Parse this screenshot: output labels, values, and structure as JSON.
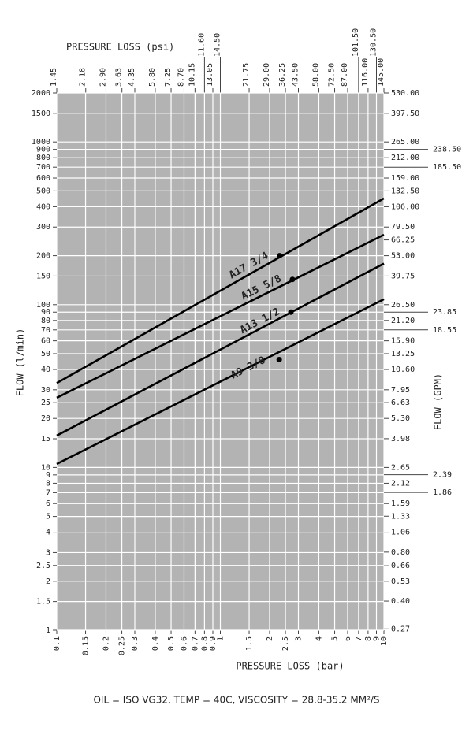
{
  "chart_data": {
    "type": "line",
    "title": "PRESSURE LOSS (psi)",
    "xlabel": "PRESSURE LOSS (bar)",
    "ylabel": "FLOW (l/min)",
    "y2label": "FLOW (GPM)",
    "footnote": "OIL = ISO VG32, TEMP = 40C, VISCOSITY = 28.8-35.2 MM²/S",
    "xscale": "log",
    "yscale": "log",
    "grid": true,
    "background": "#b3b3b3",
    "grid_color": "#ffffff",
    "xlim": [
      0.1,
      10
    ],
    "xticks": [
      0.1,
      0.15,
      0.2,
      0.25,
      0.3,
      0.4,
      0.5,
      0.6,
      0.7,
      0.8,
      0.9,
      1,
      1.5,
      2,
      2.5,
      3,
      4,
      5,
      6,
      7,
      8,
      9,
      10
    ],
    "x2lim": [
      1.45,
      145
    ],
    "x2ticks": [
      1.45,
      2.18,
      {
        "value": 2.9,
        "label": "2.90"
      },
      3.63,
      4.35,
      {
        "value": 5.8,
        "label": "5.80"
      },
      7.25,
      {
        "value": 8.7,
        "label": "8.70"
      },
      10.15,
      13.05,
      {
        "value": 21.75,
        "label": "21.75"
      },
      {
        "value": 29,
        "label": "29.00"
      },
      36.25,
      {
        "value": 43.5,
        "label": "43.50"
      },
      {
        "value": 58,
        "label": "58.00"
      },
      {
        "value": 72.5,
        "label": "72.50"
      },
      {
        "value": 87,
        "label": "87.00"
      },
      {
        "value": 116,
        "label": "116.00"
      },
      {
        "value": 145,
        "label": "145.00"
      }
    ],
    "x2ticks_raised": [
      {
        "value": 11.6,
        "label": "11.60"
      },
      {
        "value": 14.5,
        "label": "14.50"
      },
      {
        "value": 101.5,
        "label": "101.50"
      },
      {
        "value": 130.5,
        "label": "130.50"
      }
    ],
    "ylim": [
      1,
      2000
    ],
    "yticks": [
      1,
      1.5,
      2,
      2.5,
      3,
      4,
      5,
      6,
      7,
      8,
      9,
      10,
      15,
      20,
      25,
      30,
      40,
      50,
      60,
      70,
      80,
      90,
      100,
      150,
      200,
      300,
      400,
      500,
      600,
      700,
      800,
      900,
      1000,
      1500,
      2000
    ],
    "y2lim": [
      0.265,
      530
    ],
    "y2ticks": [
      0.27,
      {
        "value": 0.4,
        "label": "0.40"
      },
      0.53,
      0.66,
      {
        "value": 0.8,
        "label": "0.80"
      },
      1.06,
      1.33,
      1.59,
      2.12,
      2.65,
      3.98,
      {
        "value": 5.3,
        "label": "5.30"
      },
      6.63,
      7.95,
      {
        "value": 10.6,
        "label": "10.60"
      },
      13.25,
      {
        "value": 15.9,
        "label": "15.90"
      },
      {
        "value": 21.2,
        "label": "21.20"
      },
      {
        "value": 26.5,
        "label": "26.50"
      },
      39.75,
      {
        "value": 53,
        "label": "53.00"
      },
      66.25,
      {
        "value": 79.5,
        "label": "79.50"
      },
      {
        "value": 106,
        "label": "106.00"
      },
      {
        "value": 132.5,
        "label": "132.50"
      },
      {
        "value": 159,
        "label": "159.00"
      },
      {
        "value": 212,
        "label": "212.00"
      },
      {
        "value": 265,
        "label": "265.00"
      },
      {
        "value": 397.5,
        "label": "397.50"
      },
      {
        "value": 530,
        "label": "530.00"
      }
    ],
    "y2ticks_outer": [
      {
        "value": 238.5,
        "label": "238.50"
      },
      {
        "value": 185.5,
        "label": "185.50"
      },
      23.85,
      18.55,
      2.39,
      1.86
    ],
    "series": [
      {
        "name": "A17 3/4",
        "color": "#000000",
        "x": [
          0.1,
          10
        ],
        "values": [
          33,
          450
        ],
        "marker_x": 2.3,
        "marker_value": 200
      },
      {
        "name": "A15 5/8",
        "color": "#000000",
        "x": [
          0.1,
          10
        ],
        "values": [
          26.8,
          269
        ],
        "marker_x": 2.76,
        "marker_value": 143
      },
      {
        "name": "A13 1/2",
        "color": "#000000",
        "x": [
          0.1,
          10
        ],
        "values": [
          15.7,
          179
        ],
        "marker_x": 2.7,
        "marker_value": 90
      },
      {
        "name": "A9 3/8",
        "color": "#000000",
        "x": [
          0.1,
          10
        ],
        "values": [
          10.5,
          108
        ],
        "marker_x": 2.29,
        "marker_value": 46
      }
    ]
  }
}
